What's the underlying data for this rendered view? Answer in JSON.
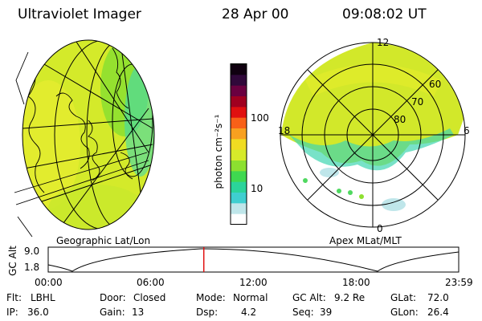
{
  "header": {
    "instrument": "Ultraviolet Imager",
    "date": "28 Apr 00",
    "time": "09:08:02 UT"
  },
  "left_panel": {
    "label": "Geographic Lat/Lon"
  },
  "right_panel": {
    "label": "Apex MLat/MLT",
    "mlt_labels": [
      "12",
      "18",
      "6",
      "0"
    ],
    "mlat_labels": [
      "60",
      "70",
      "80"
    ]
  },
  "colorbar": {
    "unit_label": "photon cm⁻²s⁻¹",
    "ticks": [
      "100",
      "10"
    ],
    "colors": [
      "#ffffff",
      "#bfe6ea",
      "#3fcfd0",
      "#2bd49a",
      "#3fd850",
      "#8ce030",
      "#d6ea2a",
      "#f0dc22",
      "#f8a020",
      "#f86018",
      "#e01010",
      "#a00020",
      "#6a0040",
      "#30083a",
      "#100010"
    ]
  },
  "altitude_plot": {
    "ylabel": "GC Alt",
    "yticks": [
      "9.0",
      "1.8"
    ],
    "xticks": [
      "00:00",
      "06:00",
      "12:00",
      "18:00",
      "23:59"
    ],
    "current_time_fraction": 0.379
  },
  "info": {
    "flt_label": "Flt:",
    "flt_value": "LBHL",
    "ip_label": "IP:",
    "ip_value": "36.0",
    "door_label": "Door:",
    "door_value": "Closed",
    "gain_label": "Gain:",
    "gain_value": "13",
    "mode_label": "Mode:",
    "mode_value": "Normal",
    "dsp_label": "Dsp:",
    "dsp_value": "4.2",
    "gcalt_label": "GC Alt:",
    "gcalt_value": "9.2 Re",
    "seq_label": "Seq:",
    "seq_value": "39",
    "glat_label": "GLat:",
    "glat_value": "72.0",
    "glon_label": "GLon:",
    "glon_value": "26.4"
  }
}
